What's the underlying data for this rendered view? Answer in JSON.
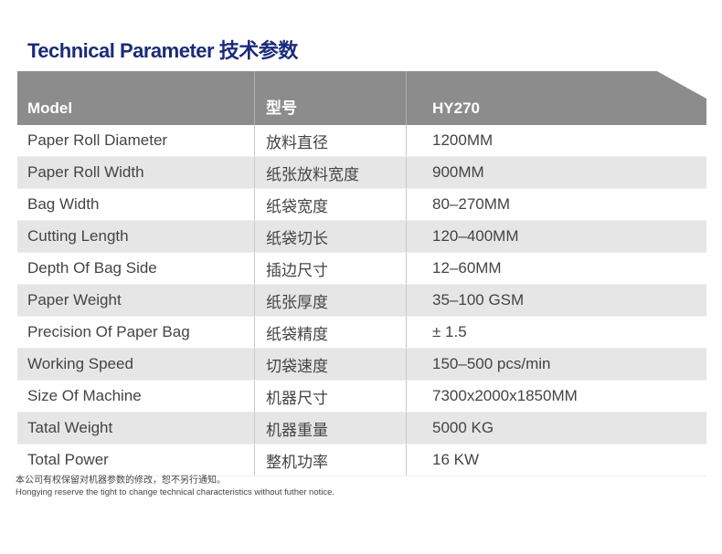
{
  "title": "Technical Parameter 技术参数",
  "header": {
    "en": "Model",
    "cn": "型号",
    "value": "HY270"
  },
  "rows": [
    {
      "en": "Paper Roll Diameter",
      "cn": "放料直径",
      "value": "1200MM"
    },
    {
      "en": "Paper Roll Width",
      "cn": "纸张放料宽度",
      "value": "900MM"
    },
    {
      "en": "Bag Width",
      "cn": "纸袋宽度",
      "value": "80–270MM"
    },
    {
      "en": "Cutting Length",
      "cn": "纸袋切长",
      "value": "120–400MM"
    },
    {
      "en": "Depth Of Bag Side",
      "cn": "插边尺寸",
      "value": "12–60MM"
    },
    {
      "en": "Paper Weight",
      "cn": "纸张厚度",
      "value": "35–100 GSM"
    },
    {
      "en": "Precision Of Paper Bag",
      "cn": "纸袋精度",
      "value": "± 1.5"
    },
    {
      "en": "Working Speed",
      "cn": "切袋速度",
      "value": "150–500 pcs/min"
    },
    {
      "en": "Size Of Machine",
      "cn": "机器尺寸",
      "value": "7300x2000x1850MM"
    },
    {
      "en": "Tatal Weight",
      "cn": "机器重量",
      "value": "5000 KG"
    },
    {
      "en": "Total Power",
      "cn": "整机功率",
      "value": "16 KW"
    }
  ],
  "notes": {
    "cn": "本公司有权保留对机器参数的修改，恕不另行通知。",
    "en": "Hongying reserve the tight to change technical characteristics without futher notice."
  }
}
